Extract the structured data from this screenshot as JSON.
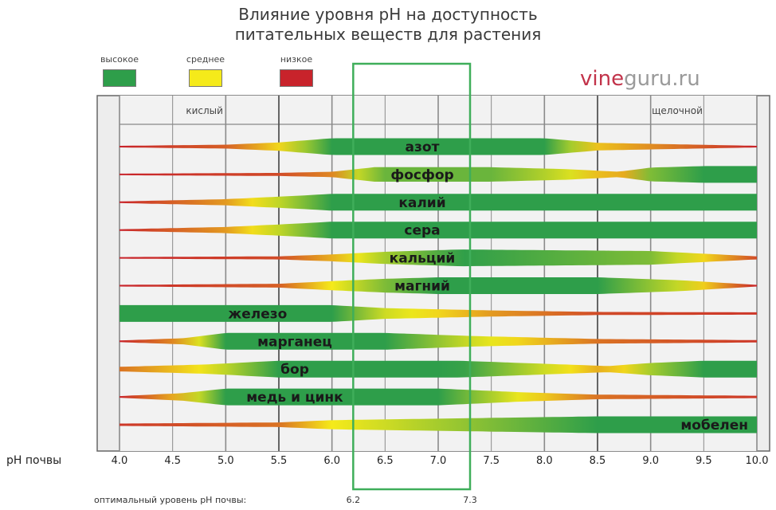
{
  "title_line1": "Влияние уровня pH на доступность",
  "title_line2": "питательных веществ для растения",
  "brand": {
    "part1": "vine",
    "part2": "guru.ru"
  },
  "legend": [
    {
      "label": "высокое",
      "color": "#2e9e4a"
    },
    {
      "label": "среднее",
      "color": "#f5ea1a"
    },
    {
      "label": "низкое",
      "color": "#c8232b"
    }
  ],
  "chart_data": {
    "type": "bar",
    "title": "Влияние уровня pH на доступность питательных веществ для растения",
    "xlabel": "pH почвы",
    "x_ticks": [
      "4.0",
      "4.5",
      "5.0",
      "5.5",
      "6.0",
      "6.5",
      "7.0",
      "7.5",
      "8.0",
      "8.5",
      "9.0",
      "9.5",
      "10.0"
    ],
    "xlim": [
      4.0,
      10.0
    ],
    "top_labels": {
      "acid": "кислый",
      "alkaline": "щелочной"
    },
    "optimal": {
      "label": "оптимальный уровень pH почвы:",
      "from": 6.2,
      "to": 7.3,
      "from_label": "6.2",
      "to_label": "7.3"
    },
    "availability_scale": {
      "0": "низкое",
      "0.5": "среднее",
      "1": "высокое"
    },
    "series": [
      {
        "name": "азот",
        "label_ph": 6.85,
        "points": [
          [
            4.0,
            0
          ],
          [
            5.0,
            0.15
          ],
          [
            5.5,
            0.45
          ],
          [
            6.0,
            1
          ],
          [
            8.0,
            1
          ],
          [
            8.5,
            0.4
          ],
          [
            10.0,
            0
          ]
        ]
      },
      {
        "name": "фосфор",
        "label_ph": 6.85,
        "points": [
          [
            4.0,
            0
          ],
          [
            5.5,
            0.1
          ],
          [
            6.0,
            0.25
          ],
          [
            6.4,
            0.85
          ],
          [
            7.5,
            0.85
          ],
          [
            8.2,
            0.6
          ],
          [
            8.7,
            0.25
          ],
          [
            9.0,
            0.8
          ],
          [
            9.5,
            1
          ],
          [
            10.0,
            1
          ]
        ]
      },
      {
        "name": "калий",
        "label_ph": 6.85,
        "points": [
          [
            4.0,
            0
          ],
          [
            5.0,
            0.3
          ],
          [
            5.6,
            0.7
          ],
          [
            6.0,
            1
          ],
          [
            10.0,
            1
          ]
        ]
      },
      {
        "name": "сера",
        "label_ph": 6.85,
        "points": [
          [
            4.0,
            0
          ],
          [
            5.0,
            0.3
          ],
          [
            5.6,
            0.7
          ],
          [
            6.0,
            1
          ],
          [
            10.0,
            1
          ]
        ]
      },
      {
        "name": "кальций",
        "label_ph": 6.85,
        "points": [
          [
            4.0,
            0
          ],
          [
            5.5,
            0.1
          ],
          [
            6.0,
            0.35
          ],
          [
            6.5,
            0.7
          ],
          [
            7.2,
            1
          ],
          [
            9.0,
            0.8
          ],
          [
            10.0,
            0.1
          ]
        ]
      },
      {
        "name": "магний",
        "label_ph": 6.85,
        "points": [
          [
            4.0,
            0
          ],
          [
            5.5,
            0.15
          ],
          [
            6.0,
            0.5
          ],
          [
            6.5,
            0.8
          ],
          [
            7.0,
            1
          ],
          [
            8.5,
            1
          ],
          [
            9.3,
            0.6
          ],
          [
            10.0,
            0
          ]
        ]
      },
      {
        "name": "железо",
        "label_ph": 5.3,
        "points": [
          [
            4.0,
            1
          ],
          [
            6.0,
            1
          ],
          [
            6.5,
            0.6
          ],
          [
            7.5,
            0.3
          ],
          [
            8.5,
            0.1
          ],
          [
            10.0,
            0.05
          ]
        ]
      },
      {
        "name": "марганец",
        "label_ph": 5.65,
        "points": [
          [
            4.0,
            0
          ],
          [
            4.6,
            0.3
          ],
          [
            5.0,
            1
          ],
          [
            6.5,
            1
          ],
          [
            7.3,
            0.6
          ],
          [
            8.5,
            0.2
          ],
          [
            10.0,
            0.05
          ]
        ]
      },
      {
        "name": "бор",
        "label_ph": 5.65,
        "points": [
          [
            4.0,
            0.2
          ],
          [
            4.8,
            0.5
          ],
          [
            5.5,
            1
          ],
          [
            7.2,
            1
          ],
          [
            8.0,
            0.6
          ],
          [
            8.6,
            0.3
          ],
          [
            9.0,
            0.7
          ],
          [
            9.5,
            1
          ],
          [
            10.0,
            1
          ]
        ]
      },
      {
        "name": "медь и цинк",
        "label_ph": 5.65,
        "points": [
          [
            4.0,
            0
          ],
          [
            4.6,
            0.4
          ],
          [
            5.0,
            1
          ],
          [
            7.0,
            1
          ],
          [
            7.8,
            0.5
          ],
          [
            8.5,
            0.2
          ],
          [
            10.0,
            0.05
          ]
        ]
      },
      {
        "name": "мобелен",
        "label_ph": 9.6,
        "points": [
          [
            4.0,
            0.05
          ],
          [
            5.5,
            0.2
          ],
          [
            6.0,
            0.5
          ],
          [
            7.5,
            0.8
          ],
          [
            8.5,
            1
          ],
          [
            10.0,
            1
          ]
        ]
      }
    ]
  }
}
